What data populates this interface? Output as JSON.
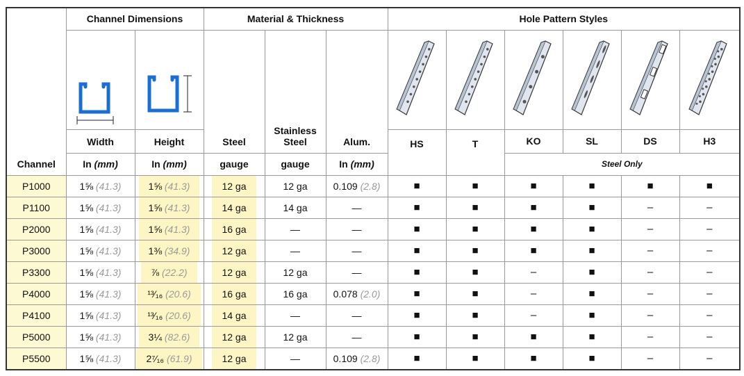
{
  "header": {
    "groups": [
      "Channel Dimensions",
      "Material & Thickness",
      "Hole Pattern Styles"
    ],
    "channel": "Channel",
    "columns": [
      "Width",
      "Height",
      "Steel",
      "Stainless Steel",
      "Alum."
    ],
    "units": [
      {
        "in": "In",
        "mm": "(mm)"
      },
      {
        "in": "In",
        "mm": "(mm)"
      },
      "gauge",
      "gauge",
      {
        "in": "In",
        "mm": "(mm)"
      }
    ],
    "holes": [
      "HS",
      "T",
      "KO",
      "SL",
      "DS",
      "H3"
    ],
    "steel_only": "Steel Only"
  },
  "rows": [
    {
      "channel": "P1000",
      "width": {
        "in": "1⅝",
        "mm": "(41.3)"
      },
      "height": {
        "in": "1⅝",
        "mm": "(41.3)"
      },
      "steel": "12 ga",
      "stainless": "12 ga",
      "alum": {
        "in": "0.109",
        "mm": "(2.8)"
      },
      "holes": [
        "■",
        "■",
        "■",
        "■",
        "■",
        "■"
      ]
    },
    {
      "channel": "P1100",
      "width": {
        "in": "1⅝",
        "mm": "(41.3)"
      },
      "height": {
        "in": "1⅝",
        "mm": "(41.3)"
      },
      "steel": "14 ga",
      "stainless": "14 ga",
      "alum": "—",
      "holes": [
        "■",
        "■",
        "■",
        "■",
        "–",
        "–"
      ]
    },
    {
      "channel": "P2000",
      "width": {
        "in": "1⅝",
        "mm": "(41.3)"
      },
      "height": {
        "in": "1⅝",
        "mm": "(41.3)"
      },
      "steel": "16 ga",
      "stainless": "—",
      "alum": "—",
      "holes": [
        "■",
        "■",
        "■",
        "■",
        "–",
        "–"
      ]
    },
    {
      "channel": "P3000",
      "width": {
        "in": "1⅝",
        "mm": "(41.3)"
      },
      "height": {
        "in": "1⅜",
        "mm": "(34.9)"
      },
      "steel": "12 ga",
      "stainless": "—",
      "alum": "—",
      "holes": [
        "■",
        "■",
        "■",
        "■",
        "–",
        "–"
      ]
    },
    {
      "channel": "P3300",
      "width": {
        "in": "1⅝",
        "mm": "(41.3)"
      },
      "height": {
        "in": "⅞",
        "mm": "(22.2)"
      },
      "steel": "12 ga",
      "stainless": "12 ga",
      "alum": "—",
      "holes": [
        "■",
        "■",
        "–",
        "■",
        "–",
        "–"
      ]
    },
    {
      "channel": "P4000",
      "width": {
        "in": "1⅝",
        "mm": "(41.3)"
      },
      "height": {
        "in": "¹³⁄₁₆",
        "mm": "(20.6)"
      },
      "steel": "16 ga",
      "stainless": "16 ga",
      "alum": {
        "in": "0.078",
        "mm": "(2.0)"
      },
      "holes": [
        "■",
        "■",
        "–",
        "■",
        "–",
        "–"
      ]
    },
    {
      "channel": "P4100",
      "width": {
        "in": "1⅝",
        "mm": "(41.3)"
      },
      "height": {
        "in": "¹³⁄₁₆",
        "mm": "(20.6)"
      },
      "steel": "14 ga",
      "stainless": "—",
      "alum": "—",
      "holes": [
        "■",
        "■",
        "–",
        "■",
        "–",
        "–"
      ]
    },
    {
      "channel": "P5000",
      "width": {
        "in": "1⅝",
        "mm": "(41.3)"
      },
      "height": {
        "in": "3¼",
        "mm": "(82.6)"
      },
      "steel": "12 ga",
      "stainless": "12 ga",
      "alum": "—",
      "holes": [
        "■",
        "■",
        "■",
        "■",
        "–",
        "–"
      ]
    },
    {
      "channel": "P5500",
      "width": {
        "in": "1⅝",
        "mm": "(41.3)"
      },
      "height": {
        "in": "2⁷⁄₁₆",
        "mm": "(61.9)"
      },
      "steel": "12 ga",
      "stainless": "—",
      "alum": {
        "in": "0.109",
        "mm": "(2.8)"
      },
      "holes": [
        "■",
        "■",
        "■",
        "■",
        "–",
        "–"
      ]
    }
  ]
}
